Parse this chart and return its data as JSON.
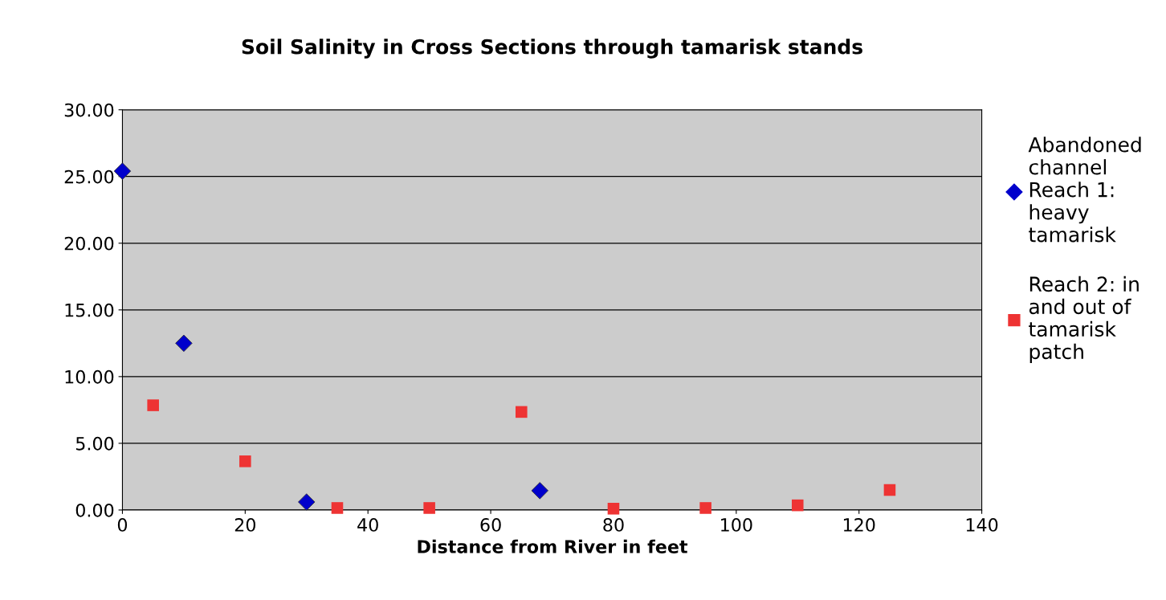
{
  "chart_data": {
    "type": "scatter",
    "title": "Soil Salinity in Cross Sections through tamarisk stands",
    "xlabel": "Distance from River in feet",
    "series": [
      {
        "name": "Abandoned channel Reach 1: heavy tamarisk",
        "color": "#0000cc",
        "marker": "diamond",
        "x": [
          0,
          10,
          30,
          68
        ],
        "values": [
          25.4,
          12.5,
          0.6,
          1.45
        ]
      },
      {
        "name": "Reach 2: in and out of tamarisk patch",
        "color": "#ee3333",
        "marker": "square",
        "x": [
          5,
          20,
          35,
          50,
          65,
          80,
          95,
          110,
          125
        ],
        "values": [
          7.85,
          3.65,
          0.15,
          0.15,
          7.35,
          0.1,
          0.15,
          0.35,
          1.5
        ]
      }
    ],
    "xlim": [
      0,
      140
    ],
    "xticks": [
      0,
      20,
      40,
      60,
      80,
      100,
      120,
      140
    ],
    "ylim": [
      0,
      30
    ],
    "yticks": [
      {
        "value": 0,
        "label": "0.00"
      },
      {
        "value": 5,
        "label": "5.00"
      },
      {
        "value": 10,
        "label": "10.00"
      },
      {
        "value": 15,
        "label": "15.00"
      },
      {
        "value": 20,
        "label": "20.00"
      },
      {
        "value": 25,
        "label": "25.00"
      },
      {
        "value": 30,
        "label": "30.00"
      }
    ],
    "grid": "y",
    "legend": "right"
  }
}
